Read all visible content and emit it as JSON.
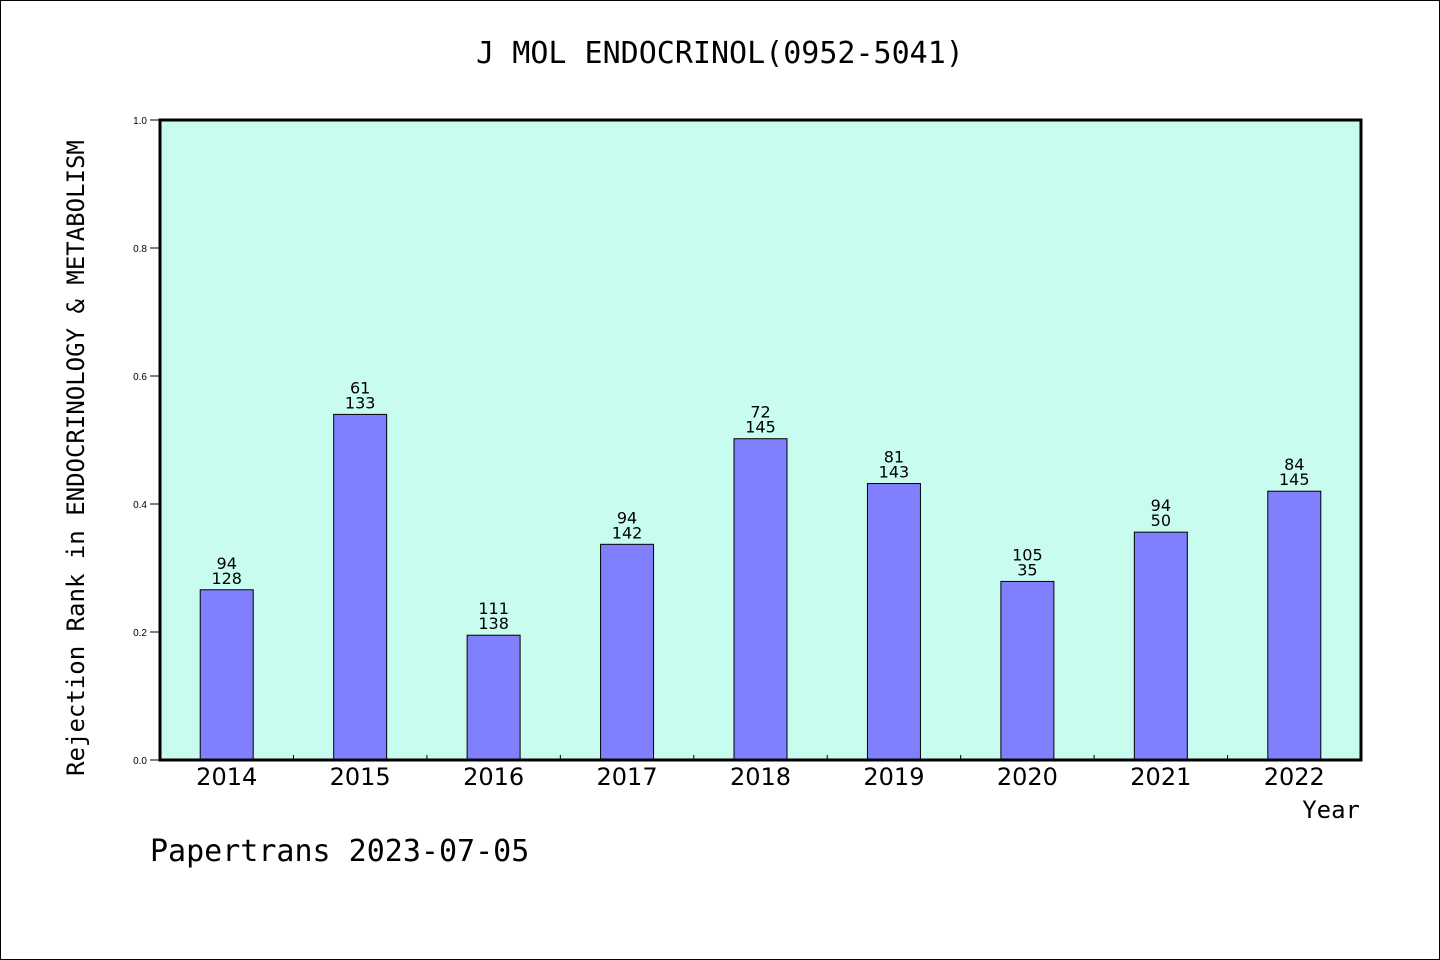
{
  "chart_data": {
    "type": "bar",
    "title": "J MOL ENDOCRINOL(0952-5041)",
    "xlabel": "Year",
    "ylabel": "Rejection Rank in ENDOCRINOLOGY & METABOLISM",
    "categories": [
      "2014",
      "2015",
      "2016",
      "2017",
      "2018",
      "2019",
      "2020",
      "2021",
      "2022"
    ],
    "values": [
      0.266,
      0.54,
      0.195,
      0.337,
      0.502,
      0.432,
      0.279,
      0.356,
      0.42
    ],
    "labels_top": [
      "94",
      "61",
      "111",
      "94",
      "72",
      "81",
      "105",
      "94",
      "84"
    ],
    "labels_bottom": [
      "128",
      "133",
      "138",
      "142",
      "145",
      "143",
      "35",
      "50",
      "145"
    ],
    "ylim": [
      0.0,
      1.0
    ],
    "yticks": [
      "0.0",
      "0.2",
      "0.4",
      "0.6",
      "0.8",
      "1.0"
    ],
    "grid": false,
    "colors": {
      "plot_background": "#c8fcee",
      "bar_fill": "#8080ff",
      "bar_stroke": "#000000"
    }
  },
  "footer": {
    "text": "Papertrans 2023-07-05"
  }
}
